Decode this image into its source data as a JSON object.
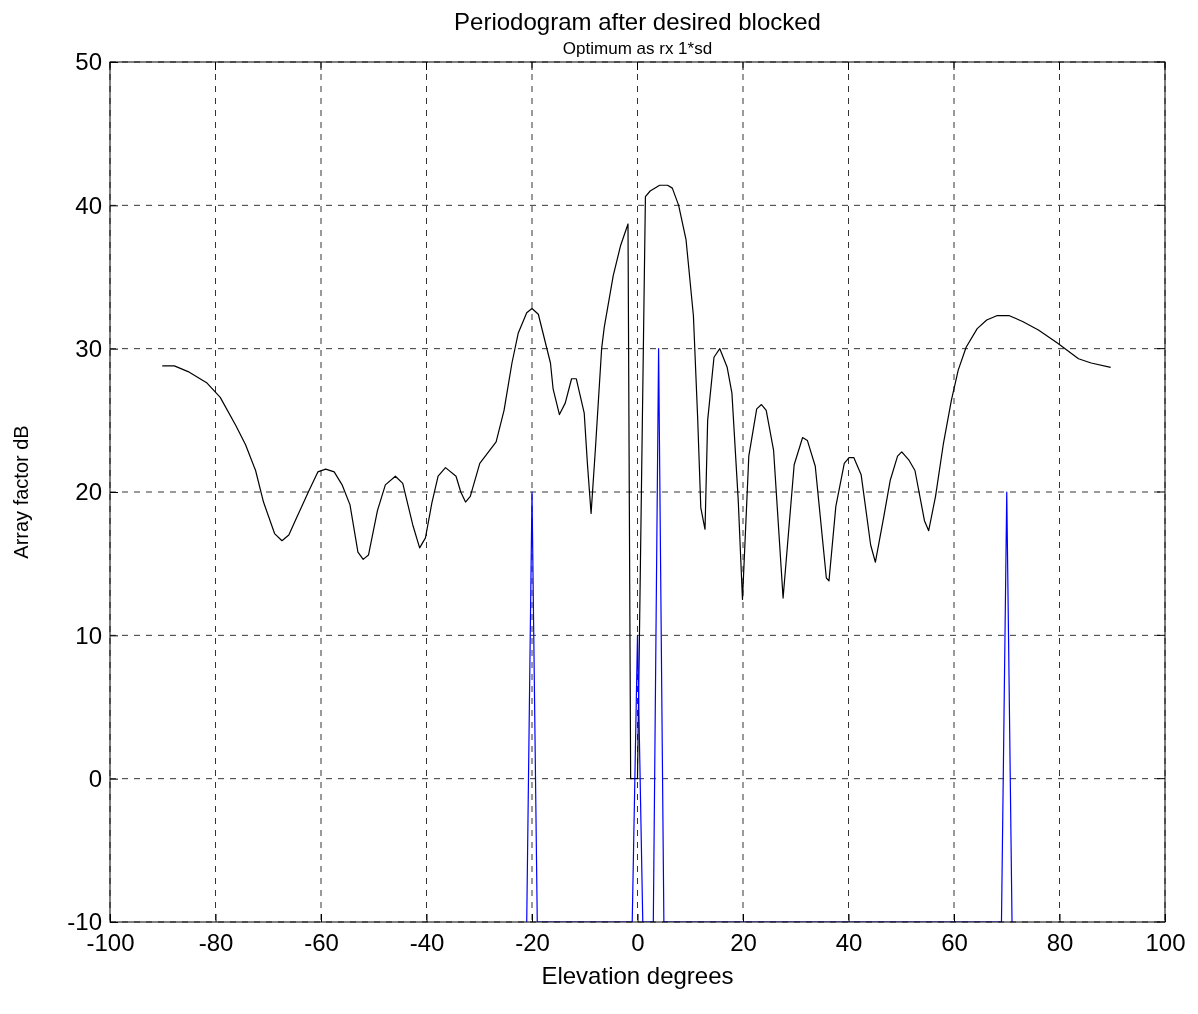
{
  "chart_data": {
    "type": "line",
    "title": "Periodogram after desired blocked",
    "subtitle": "Optimum as rx 1*sd",
    "xlabel": "Elevation degrees",
    "ylabel": "Array factor dB",
    "xlim": [
      -100,
      100
    ],
    "xticks": [
      -100,
      -80,
      -60,
      -40,
      -20,
      0,
      20,
      40,
      60,
      80,
      100
    ],
    "ylim": [
      -10,
      50
    ],
    "yticks": [
      -10,
      0,
      10,
      20,
      30,
      40,
      50
    ],
    "grid": true,
    "marker": "none",
    "line_style": "solid",
    "series": [
      {
        "color": "#000000",
        "x": [
          -90.1,
          -87.8,
          -85.2,
          -81.6,
          -79.1,
          -76.1,
          -74.3,
          -72.4,
          -70.9,
          -68.8,
          -67.4,
          -66.1,
          -64.5,
          -62.4,
          -60.6,
          -59.1,
          -57.5,
          -56.0,
          -54.5,
          -53.0,
          -52.0,
          -51.0,
          -49.3,
          -47.8,
          -45.9,
          -44.5,
          -42.6,
          -41.3,
          -40.2,
          -39.0,
          -37.8,
          -36.4,
          -34.4,
          -33.5,
          -32.6,
          -31.7,
          -29.9,
          -26.8,
          -25.3,
          -23.8,
          -22.6,
          -21.0,
          -20.0,
          -18.8,
          -16.5,
          -16.0,
          -14.8,
          -13.7,
          -12.5,
          -11.6,
          -10.1,
          -9.5,
          -8.8,
          -8.0,
          -6.8,
          -6.3,
          -4.6,
          -3.2,
          -1.8,
          -1.3,
          0.0,
          1.5,
          2.4,
          4.2,
          5.7,
          6.6,
          7.8,
          9.2,
          10.6,
          11.4,
          12.0,
          12.8,
          13.3,
          14.5,
          15.6,
          17.0,
          17.9,
          19.1,
          19.9,
          21.1,
          22.6,
          23.5,
          24.4,
          25.8,
          27.6,
          29.7,
          31.3,
          32.2,
          33.7,
          35.8,
          36.3,
          37.6,
          39.2,
          40.1,
          41.0,
          42.4,
          44.2,
          45.1,
          46.7,
          47.9,
          49.3,
          50.1,
          51.5,
          52.6,
          54.4,
          55.2,
          56.5,
          58.0,
          59.5,
          60.8,
          62.3,
          64.4,
          66.2,
          68.1,
          70.5,
          73.0,
          76.0,
          79.6,
          83.6,
          86.0,
          89.7
        ],
        "values": [
          28.8,
          28.8,
          28.4,
          27.6,
          26.6,
          24.6,
          23.3,
          21.5,
          19.3,
          17.1,
          16.6,
          17.0,
          18.3,
          20.0,
          21.4,
          21.6,
          21.4,
          20.5,
          19.1,
          15.8,
          15.3,
          15.6,
          18.7,
          20.5,
          21.1,
          20.6,
          17.7,
          16.1,
          16.8,
          19.2,
          21.1,
          21.7,
          21.1,
          20.0,
          19.3,
          19.7,
          22.0,
          23.5,
          25.7,
          29.0,
          31.1,
          32.5,
          32.8,
          32.4,
          29.0,
          27.2,
          25.4,
          26.2,
          27.9,
          27.9,
          25.5,
          22.0,
          18.5,
          22.9,
          30.0,
          31.5,
          35.1,
          37.2,
          38.7,
          0,
          0,
          40.6,
          41.0,
          41.4,
          41.4,
          41.2,
          40.0,
          37.6,
          32.3,
          25.2,
          18.9,
          17.4,
          25.0,
          29.4,
          30.0,
          28.7,
          26.9,
          19.4,
          12.5,
          22.5,
          25.8,
          26.1,
          25.7,
          22.9,
          12.6,
          21.9,
          23.8,
          23.6,
          21.8,
          14.0,
          13.8,
          19.0,
          22.0,
          22.4,
          22.4,
          21.2,
          16.3,
          15.1,
          18.3,
          20.8,
          22.5,
          22.8,
          22.2,
          21.5,
          18.0,
          17.3,
          19.7,
          23.4,
          26.4,
          28.5,
          30.1,
          31.4,
          32.0,
          32.3,
          32.3,
          31.9,
          31.3,
          30.4,
          29.3,
          29.0,
          28.7
        ]
      },
      {
        "color": "#0000ff",
        "x": [
          -21,
          -20,
          -19,
          -1,
          0,
          1,
          3,
          4,
          5,
          69,
          70,
          71
        ],
        "values": [
          -10,
          20,
          -10,
          -10,
          10,
          -10,
          -10,
          30,
          -10,
          -10,
          20,
          -10
        ]
      }
    ]
  }
}
